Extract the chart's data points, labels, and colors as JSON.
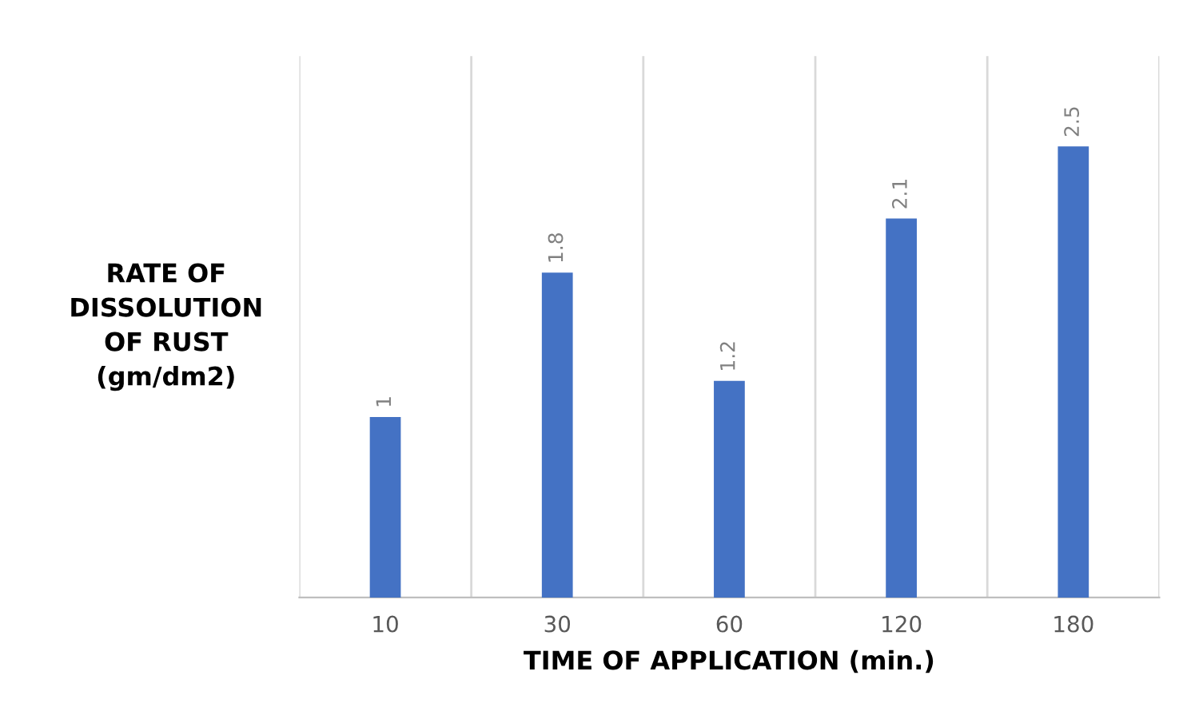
{
  "chart_data": {
    "type": "bar",
    "xlabel": "TIME OF APPLICATION (min.)",
    "ylabel": "RATE OF\nDISSOLUTION\nOF RUST\n(gm/dm2)",
    "categories": [
      "10",
      "30",
      "60",
      "120",
      "180"
    ],
    "values": [
      1,
      1.8,
      1.2,
      2.1,
      2.5
    ],
    "color": "#4472c4",
    "ylim": [
      0,
      3
    ],
    "data_labels": true,
    "grid": "x",
    "legend": false
  }
}
